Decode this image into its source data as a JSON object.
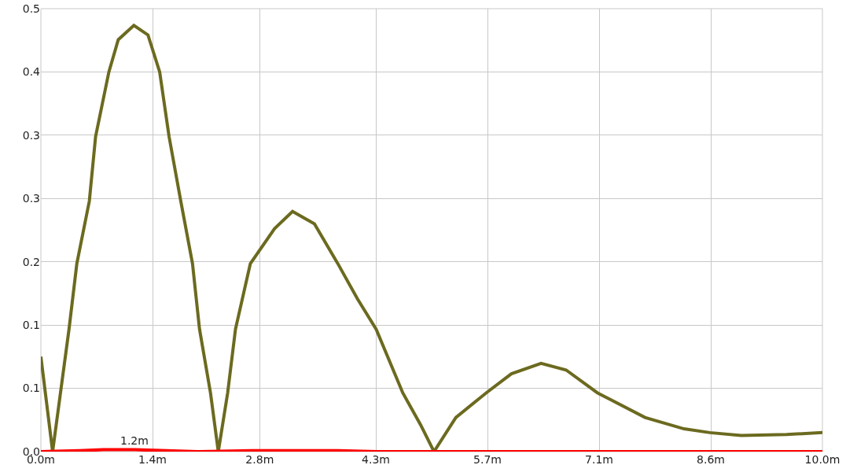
{
  "chart_data": {
    "type": "line",
    "grid": true,
    "xlim": [
      0,
      10
    ],
    "xticks": [
      {
        "value": 0,
        "label": "0.0m"
      },
      {
        "value": 1.4286,
        "label": "1.4m"
      },
      {
        "value": 2.8,
        "label": "2.8m"
      },
      {
        "value": 4.2857,
        "label": "4.3m"
      },
      {
        "value": 5.7143,
        "label": "5.7m"
      },
      {
        "value": 7.1429,
        "label": "7.1m"
      },
      {
        "value": 8.5714,
        "label": "8.6m"
      },
      {
        "value": 10,
        "label": "10.0m"
      }
    ],
    "ylim": [
      0,
      0.4667
    ],
    "yticks": [
      {
        "value": 0,
        "label": "0.0"
      },
      {
        "value": 0.0667,
        "label": "0.1"
      },
      {
        "value": 0.1333,
        "label": "0.1"
      },
      {
        "value": 0.2,
        "label": "0.2"
      },
      {
        "value": 0.2667,
        "label": "0.3"
      },
      {
        "value": 0.3333,
        "label": "0.3"
      },
      {
        "value": 0.4,
        "label": "0.4"
      },
      {
        "value": 0.4667,
        "label": "0.5"
      }
    ],
    "series": [
      {
        "color": "#6b6a1f",
        "x": [
          0,
          0.15,
          0.36,
          0.46,
          0.62,
          0.7,
          0.87,
          0.99,
          1.19,
          1.37,
          1.52,
          1.64,
          1.79,
          1.94,
          2.03,
          2.17,
          2.27,
          2.39,
          2.49,
          2.68,
          2.99,
          3.22,
          3.5,
          3.8,
          4.05,
          4.29,
          4.63,
          4.86,
          5.03,
          5.31,
          5.7,
          6.02,
          6.4,
          6.72,
          7.12,
          7.73,
          8.23,
          8.56,
          8.96,
          9.54,
          10
        ],
        "values": [
          0.1,
          0,
          0.129,
          0.198,
          0.264,
          0.332,
          0.4,
          0.434,
          0.449,
          0.439,
          0.4,
          0.332,
          0.264,
          0.198,
          0.129,
          0.062,
          0,
          0.062,
          0.129,
          0.198,
          0.235,
          0.253,
          0.24,
          0.198,
          0.161,
          0.129,
          0.062,
          0.028,
          0,
          0.036,
          0.062,
          0.082,
          0.093,
          0.086,
          0.062,
          0.036,
          0.024,
          0.02,
          0.017,
          0.018,
          0.02
        ]
      },
      {
        "color": "#ff0000",
        "x": [
          0,
          0.5,
          0.8,
          1.2,
          1.6,
          2,
          2.7,
          3.8,
          4.3,
          10
        ],
        "values": [
          0,
          0.001,
          0.002,
          0.002,
          0.001,
          0,
          0.001,
          0.001,
          0,
          0
        ]
      }
    ],
    "annotations": [
      {
        "text": "1.2m",
        "x": 1.2,
        "y": 0.002
      }
    ]
  }
}
